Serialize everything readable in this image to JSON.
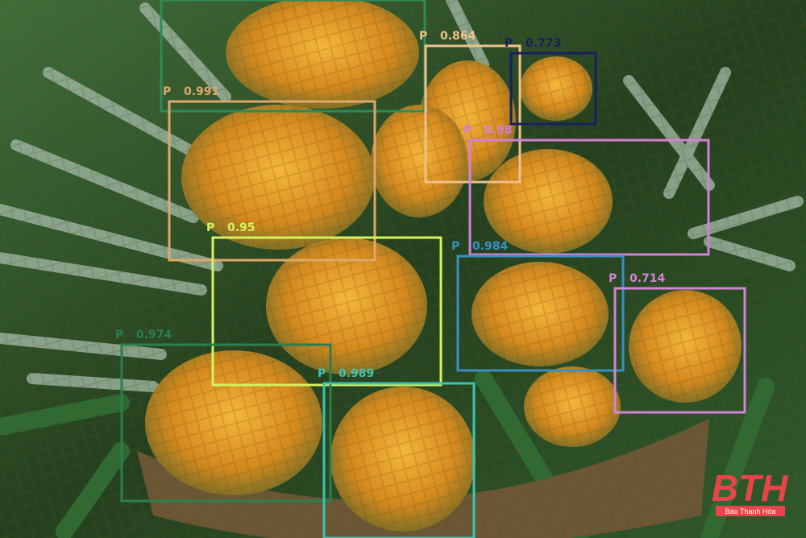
{
  "detections": [
    {
      "color": "#2e8b57"
    },
    {
      "label": "P",
      "score": 0.991,
      "color": "#e0a66a"
    },
    {
      "label": "P",
      "score": 0.864,
      "color": "#f0c08a"
    },
    {
      "label": "P",
      "score": 0.773,
      "color": "#1a1f5e"
    },
    {
      "label": "P",
      "score": 0.98,
      "color": "#d47fd8"
    },
    {
      "label": "P",
      "score": 0.95,
      "color": "#d6f25e"
    },
    {
      "label": "P",
      "score": 0.984,
      "color": "#3a8fc0"
    },
    {
      "label": "P",
      "score": 0.714,
      "color": "#d384d6"
    },
    {
      "label": "P",
      "score": 0.974,
      "color": "#2e7d4f"
    },
    {
      "label": "P",
      "score": 0.989,
      "color": "#3cc4b2"
    }
  ],
  "watermark": {
    "logo": "BTH",
    "caption": "Báo Thanh Hóa"
  }
}
